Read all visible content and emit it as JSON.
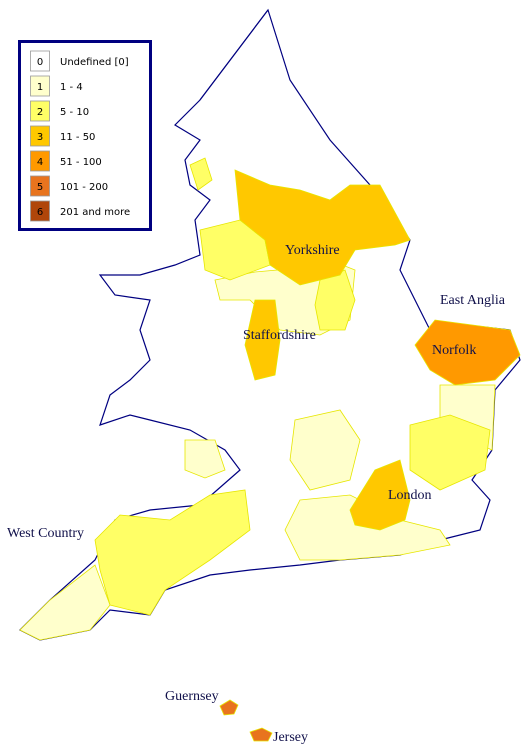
{
  "legend": {
    "items": [
      {
        "class": "0",
        "label": "Undefined  [0]",
        "color": "#ffffff"
      },
      {
        "class": "1",
        "label": "1 - 4",
        "color": "#ffffcc"
      },
      {
        "class": "2",
        "label": "5 - 10",
        "color": "#ffff66"
      },
      {
        "class": "3",
        "label": "11 - 50",
        "color": "#ffc800"
      },
      {
        "class": "4",
        "label": "51 - 100",
        "color": "#ff9900"
      },
      {
        "class": "5",
        "label": "101 - 200",
        "color": "#e8741e"
      },
      {
        "class": "6",
        "label": "201 and more",
        "color": "#b0460a"
      }
    ]
  },
  "places": [
    "East Anglia",
    "Yorkshire",
    "Staffordshire",
    "Norfolk",
    "London",
    "West Country",
    "Guernsey",
    "Jersey"
  ]
}
